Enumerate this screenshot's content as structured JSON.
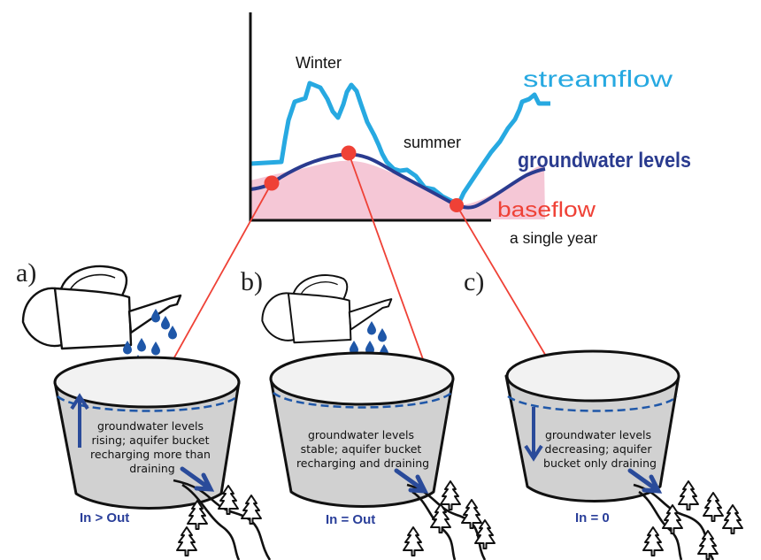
{
  "chart": {
    "labels": {
      "winter": "Winter",
      "summer": "summer",
      "streamflow": "streamflow",
      "groundwater": "groundwater levels",
      "baseflow": "baseflow",
      "xaxis": "a single year"
    },
    "colors": {
      "streamflow": "#27a9e1",
      "groundwater": "#2a3b8f",
      "baseflow_fill": "#f5c7d6",
      "baseflow_text": "#ef4136",
      "marker": "#ef4136"
    }
  },
  "panels": [
    {
      "letter": "a)",
      "text": [
        "groundwater levels",
        "rising; aquifer bucket",
        "recharging more than",
        "draining"
      ],
      "balance": "In > Out",
      "level_arrow": "up"
    },
    {
      "letter": "b)",
      "text": [
        "groundwater levels",
        "stable; aquifer bucket",
        "recharging and draining"
      ],
      "balance": "In = Out",
      "level_arrow": "none"
    },
    {
      "letter": "c)",
      "text": [
        "groundwater levels",
        "decreasing; aquifer",
        "bucket only draining"
      ],
      "balance": "In = 0",
      "level_arrow": "down"
    }
  ],
  "icons": {
    "can": "watering-can-icon",
    "tree": "pine-tree-icon",
    "river": "river-icon",
    "drop": "water-drop-icon",
    "arrow": "outflow-arrow-icon"
  }
}
